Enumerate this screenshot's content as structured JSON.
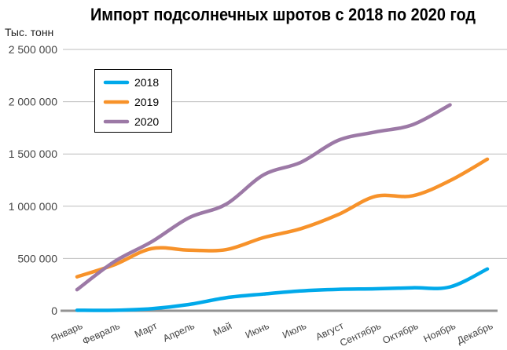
{
  "chart_data": {
    "type": "line",
    "title": "Импорт подсолнечных шротов с 2018 по 2020 год",
    "ylabel": "Тыс. тонн",
    "xlabel": "",
    "ylim": [
      0,
      2500000
    ],
    "yticks": [
      0,
      500000,
      1000000,
      1500000,
      2000000,
      2500000
    ],
    "ytick_labels": [
      "0",
      "500 000",
      "1 000 000",
      "1 500 000",
      "2 000 000",
      "2 500 000"
    ],
    "grid": true,
    "legend": "top-left",
    "categories": [
      "Январь",
      "Февраль",
      "Март",
      "Апрель",
      "Май",
      "Июнь",
      "Июль",
      "Август",
      "Сентябрь",
      "Октябрь",
      "Ноябрь",
      "Декабрь"
    ],
    "series": [
      {
        "name": "2018",
        "color": "#00a9ea",
        "values": [
          5000,
          5000,
          20000,
          60000,
          125000,
          160000,
          190000,
          205000,
          210000,
          220000,
          228000,
          400000
        ]
      },
      {
        "name": "2019",
        "color": "#f7922a",
        "values": [
          325000,
          440000,
          595000,
          580000,
          585000,
          700000,
          785000,
          920000,
          1095000,
          1100000,
          1245000,
          1450000
        ]
      },
      {
        "name": "2020",
        "color": "#9c79a6",
        "values": [
          202000,
          470000,
          660000,
          890000,
          1020000,
          1300000,
          1420000,
          1630000,
          1710000,
          1780000,
          1970000,
          null
        ]
      }
    ]
  }
}
